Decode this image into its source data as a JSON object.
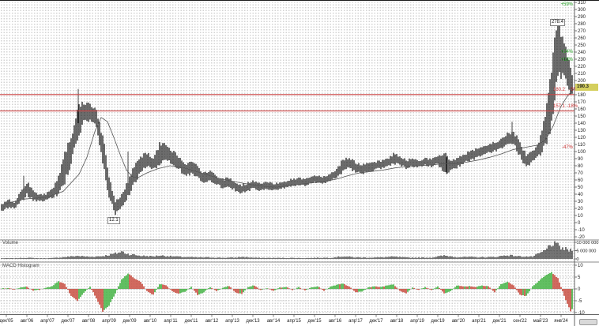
{
  "panes": {
    "volume_label": "Volume",
    "macd_label": "MACD Histogram"
  },
  "price_axis": {
    "ticks": [
      310,
      300,
      290,
      280,
      270,
      260,
      250,
      240,
      230,
      220,
      210,
      200,
      190,
      180,
      170,
      160,
      150,
      140,
      130,
      120,
      110,
      100,
      90,
      80,
      70,
      60,
      50,
      40,
      30,
      20,
      10,
      0,
      -10,
      -20
    ]
  },
  "volume_axis": {
    "ticks": [
      {
        "label": "10 000 000",
        "value": 10
      },
      {
        "label": "5 000 000",
        "value": 5
      },
      {
        "label": "0",
        "value": 0
      }
    ]
  },
  "macd_axis": {
    "ticks": [
      10,
      5,
      0,
      -5,
      -10
    ]
  },
  "x_axis": {
    "labels": [
      "дек'05",
      "авг'06",
      "апр'07",
      "дек'07",
      "авг'08",
      "апр'09",
      "дек'09",
      "авг'10",
      "апр'11",
      "дек'11",
      "авг'12",
      "апр'13",
      "дек'13",
      "авг'14",
      "апр'15",
      "дек'15",
      "авг'16",
      "апр'17",
      "дек'17",
      "авг'18",
      "апр'19",
      "дек'19",
      "авг'20",
      "апр'21",
      "дек'21",
      "сен'22",
      "май'23",
      "янв'24"
    ]
  },
  "annotations": {
    "price_tag": "190.3",
    "high_tag": "278.4",
    "low_tag": "12.1",
    "levels": [
      {
        "label": "180.2",
        "pct": "-5%",
        "price": 180.2
      },
      {
        "label": "157.1",
        "pct": "-18%",
        "price": 157.1
      }
    ],
    "pct_markers": [
      {
        "label": "+59%",
        "price": 302.6,
        "color": "green"
      },
      {
        "label": "+24%",
        "price": 236.0,
        "color": "green"
      },
      {
        "label": "+18%",
        "price": 224.6,
        "color": "green"
      },
      {
        "label": "-47%",
        "price": 100.9,
        "color": "red"
      }
    ]
  },
  "colors": {
    "bar": "#1c1c1c",
    "ma": "#555555",
    "level_red": "#cc4444",
    "macd_green": "#46b446",
    "macd_red": "#c94f43",
    "volume_bar": "#2a2a2a",
    "axis_line": "#666666",
    "separator": "#8a8a8a",
    "grid_dash": "#c9c9c9",
    "tick_text": "#1a1a1a",
    "price_tag_bg": "#d4cf5e"
  },
  "chart_data": {
    "type": "candlestick",
    "title": "",
    "panes": [
      "price",
      "volume",
      "macd_histogram"
    ],
    "price": {
      "ylim": [
        -20,
        310
      ],
      "bars": [
        [
          2,
          24,
          17
        ],
        [
          10,
          32,
          22
        ],
        [
          18,
          28,
          21
        ],
        [
          26,
          42,
          30
        ],
        [
          34,
          56,
          40
        ],
        [
          42,
          44,
          33
        ],
        [
          50,
          38,
          30
        ],
        [
          58,
          40,
          32
        ],
        [
          66,
          46,
          36
        ],
        [
          74,
          62,
          42
        ],
        [
          82,
          98,
          60
        ],
        [
          90,
          118,
          88
        ],
        [
          98,
          158,
          118
        ],
        [
          106,
          168,
          142
        ],
        [
          114,
          165,
          144
        ],
        [
          122,
          158,
          138
        ],
        [
          130,
          118,
          85
        ],
        [
          138,
          62,
          38
        ],
        [
          146,
          28,
          12.1
        ],
        [
          154,
          38,
          22
        ],
        [
          162,
          56,
          38
        ],
        [
          170,
          80,
          55
        ],
        [
          178,
          92,
          72
        ],
        [
          186,
          97,
          80
        ],
        [
          194,
          90,
          76
        ],
        [
          202,
          108,
          84
        ],
        [
          210,
          110,
          92
        ],
        [
          218,
          100,
          85
        ],
        [
          226,
          92,
          78
        ],
        [
          234,
          80,
          66
        ],
        [
          242,
          84,
          70
        ],
        [
          250,
          78,
          64
        ],
        [
          258,
          68,
          56
        ],
        [
          266,
          72,
          60
        ],
        [
          274,
          64,
          54
        ],
        [
          282,
          60,
          50
        ],
        [
          290,
          62,
          52
        ],
        [
          298,
          55,
          46
        ],
        [
          306,
          52,
          42
        ],
        [
          314,
          55,
          46
        ],
        [
          322,
          58,
          49
        ],
        [
          330,
          54,
          46
        ],
        [
          338,
          56,
          48
        ],
        [
          346,
          54,
          47
        ],
        [
          354,
          56,
          48
        ],
        [
          362,
          58,
          50
        ],
        [
          370,
          60,
          52
        ],
        [
          378,
          62,
          54
        ],
        [
          386,
          61,
          53
        ],
        [
          394,
          64,
          56
        ],
        [
          402,
          66,
          58
        ],
        [
          410,
          64,
          56
        ],
        [
          418,
          68,
          60
        ],
        [
          426,
          74,
          64
        ],
        [
          434,
          88,
          72
        ],
        [
          442,
          90,
          78
        ],
        [
          450,
          84,
          72
        ],
        [
          458,
          80,
          70
        ],
        [
          466,
          82,
          73
        ],
        [
          474,
          84,
          75
        ],
        [
          482,
          86,
          77
        ],
        [
          490,
          89,
          80
        ],
        [
          498,
          96,
          84
        ],
        [
          506,
          92,
          82
        ],
        [
          514,
          87,
          77
        ],
        [
          522,
          89,
          80
        ],
        [
          530,
          87,
          79
        ],
        [
          538,
          90,
          81
        ],
        [
          546,
          88,
          80
        ],
        [
          554,
          92,
          83
        ],
        [
          562,
          96,
          72
        ],
        [
          570,
          86,
          74
        ],
        [
          578,
          90,
          79
        ],
        [
          586,
          94,
          84
        ],
        [
          594,
          99,
          88
        ],
        [
          602,
          102,
          92
        ],
        [
          610,
          104,
          94
        ],
        [
          618,
          109,
          99
        ],
        [
          626,
          112,
          102
        ],
        [
          634,
          116,
          105
        ],
        [
          642,
          124,
          110
        ],
        [
          650,
          126,
          112
        ],
        [
          658,
          112,
          95
        ],
        [
          666,
          94,
          78
        ],
        [
          674,
          100,
          87
        ],
        [
          682,
          112,
          96
        ],
        [
          690,
          150,
          108
        ],
        [
          698,
          215,
          148
        ],
        [
          706,
          278.4,
          215
        ],
        [
          714,
          252,
          210
        ],
        [
          722,
          215,
          182
        ],
        [
          726,
          200,
          185
        ]
      ],
      "wicks": [
        [
          99,
          188,
          140
        ],
        [
          30,
          66,
          44
        ],
        [
          162,
          100,
          55
        ],
        [
          565,
          92,
          68
        ],
        [
          648,
          142,
          112
        ]
      ],
      "ma": [
        [
          2,
          25
        ],
        [
          30,
          33
        ],
        [
          60,
          36
        ],
        [
          80,
          44
        ],
        [
          100,
          68
        ],
        [
          110,
          92
        ],
        [
          120,
          128
        ],
        [
          128,
          148
        ],
        [
          136,
          142
        ],
        [
          144,
          120
        ],
        [
          152,
          96
        ],
        [
          160,
          74
        ],
        [
          168,
          64
        ],
        [
          176,
          64
        ],
        [
          186,
          70
        ],
        [
          200,
          76
        ],
        [
          215,
          80
        ],
        [
          230,
          78
        ],
        [
          245,
          73
        ],
        [
          260,
          68
        ],
        [
          275,
          63
        ],
        [
          290,
          59
        ],
        [
          305,
          56
        ],
        [
          320,
          53
        ],
        [
          335,
          51
        ],
        [
          350,
          50
        ],
        [
          365,
          52
        ],
        [
          380,
          54
        ],
        [
          395,
          56
        ],
        [
          410,
          58
        ],
        [
          425,
          61
        ],
        [
          440,
          66
        ],
        [
          455,
          70
        ],
        [
          470,
          72
        ],
        [
          485,
          74
        ],
        [
          500,
          77
        ],
        [
          515,
          79
        ],
        [
          530,
          80
        ],
        [
          545,
          81
        ],
        [
          560,
          83
        ],
        [
          575,
          83
        ],
        [
          590,
          85
        ],
        [
          605,
          88
        ],
        [
          620,
          92
        ],
        [
          635,
          97
        ],
        [
          650,
          103
        ],
        [
          665,
          106
        ],
        [
          680,
          109
        ],
        [
          690,
          116
        ],
        [
          700,
          136
        ],
        [
          710,
          164
        ],
        [
          718,
          178
        ],
        [
          726,
          188
        ]
      ]
    },
    "volume": {
      "unit": "millions",
      "ylim": [
        0,
        10
      ],
      "points": [
        [
          2,
          0.4
        ],
        [
          18,
          0.4
        ],
        [
          34,
          0.7
        ],
        [
          50,
          0.4
        ],
        [
          66,
          0.5
        ],
        [
          82,
          1.1
        ],
        [
          98,
          1.8
        ],
        [
          114,
          1.2
        ],
        [
          130,
          1.7
        ],
        [
          146,
          3.2
        ],
        [
          154,
          4.4
        ],
        [
          162,
          3.0
        ],
        [
          178,
          1.9
        ],
        [
          194,
          1.5
        ],
        [
          202,
          2.1
        ],
        [
          218,
          1.5
        ],
        [
          234,
          1.1
        ],
        [
          250,
          0.9
        ],
        [
          266,
          0.9
        ],
        [
          282,
          0.7
        ],
        [
          298,
          0.8
        ],
        [
          306,
          1.2
        ],
        [
          322,
          0.7
        ],
        [
          338,
          0.6
        ],
        [
          354,
          0.6
        ],
        [
          370,
          0.6
        ],
        [
          386,
          0.5
        ],
        [
          402,
          0.7
        ],
        [
          418,
          0.7
        ],
        [
          434,
          1.5
        ],
        [
          450,
          0.9
        ],
        [
          466,
          0.8
        ],
        [
          482,
          0.9
        ],
        [
          498,
          1.3
        ],
        [
          514,
          0.8
        ],
        [
          530,
          0.8
        ],
        [
          546,
          0.8
        ],
        [
          562,
          2.0
        ],
        [
          578,
          1.1
        ],
        [
          594,
          1.1
        ],
        [
          610,
          1.0
        ],
        [
          626,
          1.1
        ],
        [
          642,
          2.3
        ],
        [
          658,
          1.5
        ],
        [
          674,
          1.3
        ],
        [
          690,
          5.0
        ],
        [
          698,
          9.3
        ],
        [
          706,
          7.8
        ],
        [
          714,
          6.0
        ],
        [
          726,
          4.5
        ]
      ]
    },
    "macd": {
      "ylim": [
        -10,
        10
      ],
      "points": [
        [
          2,
          0.2
        ],
        [
          10,
          0.4
        ],
        [
          18,
          -0.3
        ],
        [
          26,
          0.6
        ],
        [
          34,
          1.0
        ],
        [
          42,
          -0.8
        ],
        [
          50,
          -0.4
        ],
        [
          58,
          0.5
        ],
        [
          66,
          1.2
        ],
        [
          74,
          3.2
        ],
        [
          82,
          2.2
        ],
        [
          90,
          -3.0
        ],
        [
          98,
          -5.0
        ],
        [
          106,
          -1.5
        ],
        [
          114,
          1.0
        ],
        [
          122,
          -4.0
        ],
        [
          130,
          -9.5
        ],
        [
          138,
          -7.0
        ],
        [
          146,
          -2.0
        ],
        [
          154,
          4.0
        ],
        [
          162,
          6.5
        ],
        [
          170,
          4.5
        ],
        [
          178,
          3.0
        ],
        [
          186,
          -1.0
        ],
        [
          194,
          -2.5
        ],
        [
          202,
          2.0
        ],
        [
          210,
          1.5
        ],
        [
          218,
          -1.0
        ],
        [
          226,
          -2.0
        ],
        [
          234,
          -1.2
        ],
        [
          242,
          1.0
        ],
        [
          250,
          -2.5
        ],
        [
          258,
          -1.5
        ],
        [
          266,
          0.8
        ],
        [
          274,
          -1.0
        ],
        [
          282,
          0.6
        ],
        [
          290,
          1.2
        ],
        [
          298,
          -1.5
        ],
        [
          306,
          -2.2
        ],
        [
          314,
          0.8
        ],
        [
          322,
          1.5
        ],
        [
          330,
          -0.6
        ],
        [
          338,
          0.4
        ],
        [
          346,
          -0.8
        ],
        [
          354,
          0.5
        ],
        [
          362,
          0.9
        ],
        [
          370,
          -0.5
        ],
        [
          378,
          0.8
        ],
        [
          386,
          -0.6
        ],
        [
          394,
          0.7
        ],
        [
          402,
          1.0
        ],
        [
          410,
          -0.8
        ],
        [
          418,
          0.9
        ],
        [
          426,
          1.8
        ],
        [
          434,
          2.2
        ],
        [
          442,
          1.0
        ],
        [
          450,
          -1.5
        ],
        [
          458,
          -1.0
        ],
        [
          466,
          0.6
        ],
        [
          474,
          1.0
        ],
        [
          482,
          0.8
        ],
        [
          490,
          1.5
        ],
        [
          498,
          2.0
        ],
        [
          506,
          -0.8
        ],
        [
          514,
          -1.8
        ],
        [
          522,
          0.6
        ],
        [
          530,
          -0.5
        ],
        [
          538,
          0.8
        ],
        [
          546,
          -0.6
        ],
        [
          554,
          1.2
        ],
        [
          562,
          -2.0
        ],
        [
          570,
          -1.0
        ],
        [
          578,
          1.5
        ],
        [
          586,
          1.0
        ],
        [
          594,
          1.2
        ],
        [
          602,
          0.8
        ],
        [
          610,
          1.5
        ],
        [
          618,
          1.2
        ],
        [
          626,
          -1.5
        ],
        [
          634,
          2.0
        ],
        [
          642,
          3.0
        ],
        [
          650,
          1.5
        ],
        [
          658,
          -2.5
        ],
        [
          666,
          -3.0
        ],
        [
          674,
          1.0
        ],
        [
          682,
          3.5
        ],
        [
          690,
          5.5
        ],
        [
          698,
          7.0
        ],
        [
          706,
          4.5
        ],
        [
          714,
          -3.0
        ],
        [
          722,
          -9.5
        ],
        [
          726,
          -7.5
        ]
      ]
    }
  }
}
